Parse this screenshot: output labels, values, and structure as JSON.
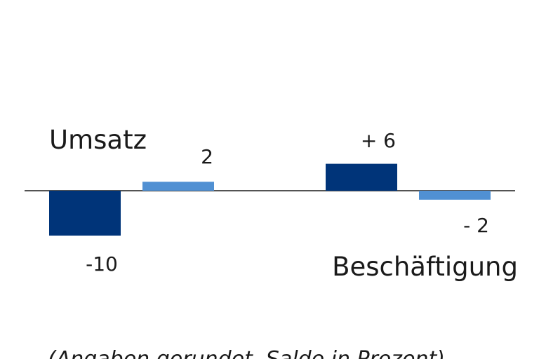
{
  "chart_data": {
    "type": "bar",
    "groups": [
      {
        "name": "Umsatz",
        "bars": [
          {
            "value": -10,
            "label": "-10",
            "color": "#003479"
          },
          {
            "value": 2,
            "label": "2",
            "color": "#5090d3"
          }
        ]
      },
      {
        "name": "Beschäftigung",
        "bars": [
          {
            "value": 6,
            "label": "+ 6",
            "color": "#003479"
          },
          {
            "value": -2,
            "label": "- 2",
            "color": "#5090d3"
          }
        ]
      }
    ],
    "footnote": "(Angaben gerundet, Saldo in Prozent)",
    "grid": false,
    "legend": "none"
  }
}
